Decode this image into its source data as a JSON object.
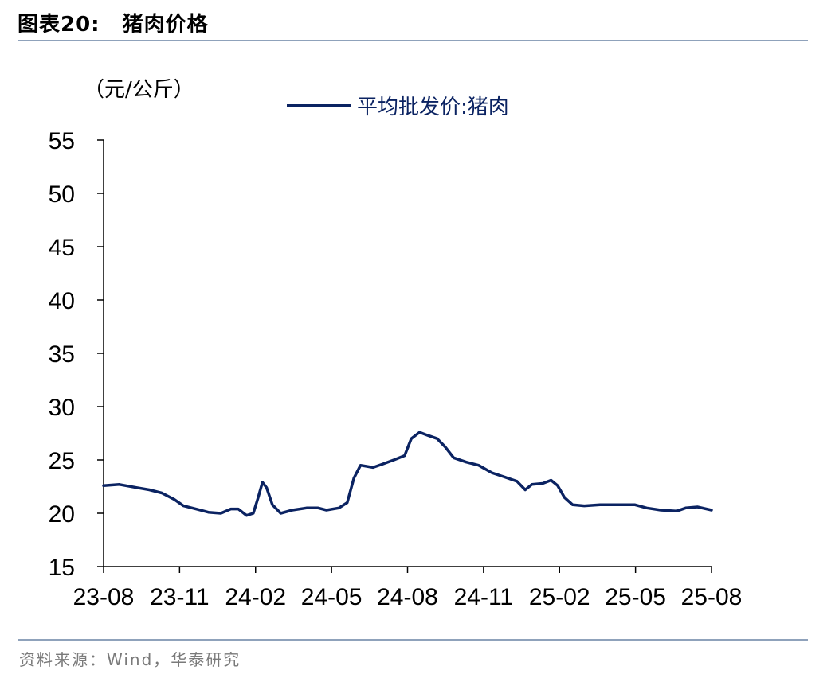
{
  "header": {
    "figure_number": "图表20:",
    "title": "猪肉价格"
  },
  "footer": {
    "source": "资料来源：Wind，华泰研究"
  },
  "colors": {
    "series": "#0b2362",
    "rule": "#8fa2bb"
  },
  "chart_data": {
    "type": "line",
    "title": "猪肉价格",
    "unit_label": "（元/公斤）",
    "ylim": [
      15,
      55
    ],
    "yticks": [
      "15",
      "20",
      "25",
      "30",
      "35",
      "40",
      "45",
      "50",
      "55"
    ],
    "xticks": [
      "23-08",
      "23-11",
      "24-02",
      "24-05",
      "24-08",
      "24-11",
      "25-02",
      "25-05",
      "25-08"
    ],
    "grid": false,
    "legend_position": "top",
    "series": [
      {
        "name": "平均批发价:猪肉",
        "color": "#0b2362",
        "points": [
          [
            "2023-08-01",
            22.6
          ],
          [
            "2023-08-20",
            22.7
          ],
          [
            "2023-09-10",
            22.4
          ],
          [
            "2023-09-25",
            22.2
          ],
          [
            "2023-10-10",
            21.9
          ],
          [
            "2023-10-25",
            21.3
          ],
          [
            "2023-11-05",
            20.7
          ],
          [
            "2023-11-20",
            20.4
          ],
          [
            "2023-12-05",
            20.1
          ],
          [
            "2023-12-20",
            20.0
          ],
          [
            "2024-01-01",
            20.4
          ],
          [
            "2024-01-10",
            20.4
          ],
          [
            "2024-01-20",
            19.8
          ],
          [
            "2024-01-28",
            20.0
          ],
          [
            "2024-02-03",
            21.5
          ],
          [
            "2024-02-08",
            22.9
          ],
          [
            "2024-02-13",
            22.4
          ],
          [
            "2024-02-20",
            20.8
          ],
          [
            "2024-03-01",
            20.0
          ],
          [
            "2024-03-15",
            20.3
          ],
          [
            "2024-04-01",
            20.5
          ],
          [
            "2024-04-15",
            20.5
          ],
          [
            "2024-04-25",
            20.3
          ],
          [
            "2024-05-10",
            20.5
          ],
          [
            "2024-05-20",
            21.0
          ],
          [
            "2024-05-28",
            23.3
          ],
          [
            "2024-06-05",
            24.5
          ],
          [
            "2024-06-20",
            24.3
          ],
          [
            "2024-07-01",
            24.6
          ],
          [
            "2024-07-15",
            25.0
          ],
          [
            "2024-07-28",
            25.4
          ],
          [
            "2024-08-05",
            27.0
          ],
          [
            "2024-08-15",
            27.6
          ],
          [
            "2024-08-25",
            27.3
          ],
          [
            "2024-09-05",
            27.0
          ],
          [
            "2024-09-15",
            26.2
          ],
          [
            "2024-09-25",
            25.2
          ],
          [
            "2024-10-10",
            24.8
          ],
          [
            "2024-10-25",
            24.5
          ],
          [
            "2024-11-10",
            23.8
          ],
          [
            "2024-11-25",
            23.4
          ],
          [
            "2024-12-10",
            23.0
          ],
          [
            "2024-12-20",
            22.2
          ],
          [
            "2024-12-28",
            22.7
          ],
          [
            "2025-01-10",
            22.8
          ],
          [
            "2025-01-20",
            23.1
          ],
          [
            "2025-01-28",
            22.6
          ],
          [
            "2025-02-05",
            21.5
          ],
          [
            "2025-02-15",
            20.8
          ],
          [
            "2025-03-01",
            20.7
          ],
          [
            "2025-03-20",
            20.8
          ],
          [
            "2025-04-05",
            20.8
          ],
          [
            "2025-04-20",
            20.8
          ],
          [
            "2025-05-01",
            20.8
          ],
          [
            "2025-05-15",
            20.5
          ],
          [
            "2025-06-01",
            20.3
          ],
          [
            "2025-06-20",
            20.2
          ],
          [
            "2025-07-01",
            20.5
          ],
          [
            "2025-07-15",
            20.6
          ],
          [
            "2025-08-01",
            20.3
          ]
        ]
      }
    ]
  }
}
